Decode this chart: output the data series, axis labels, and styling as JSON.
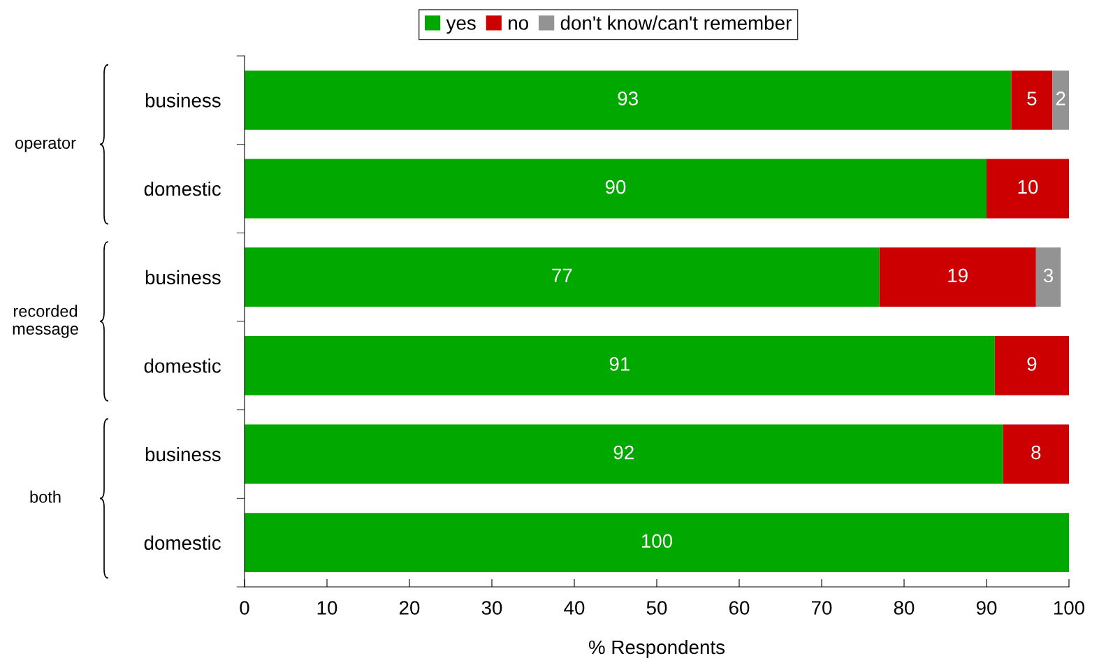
{
  "chart_data": {
    "type": "bar",
    "orientation": "horizontal",
    "stacked": true,
    "data_labels": true,
    "xlabel": "% Respondents",
    "categories": [
      "business",
      "domestic",
      "business",
      "domestic",
      "business",
      "domestic"
    ],
    "series": [
      {
        "name": "yes",
        "color": "#00a800",
        "values": [
          93,
          90,
          77,
          91,
          92,
          100
        ]
      },
      {
        "name": "no",
        "color": "#cc0000",
        "values": [
          5,
          10,
          19,
          9,
          8,
          null
        ]
      },
      {
        "name": "don't know/can't remember",
        "color": "#939393",
        "values": [
          2,
          null,
          3,
          null,
          null,
          null
        ]
      }
    ],
    "annotations": [
      "operator",
      "recorded\nmessage",
      "both"
    ],
    "xlim": [
      0,
      100
    ],
    "xticks": [
      0,
      10,
      20,
      30,
      40,
      50,
      60,
      70,
      80,
      90,
      100
    ],
    "grid": false,
    "legend": "top"
  }
}
